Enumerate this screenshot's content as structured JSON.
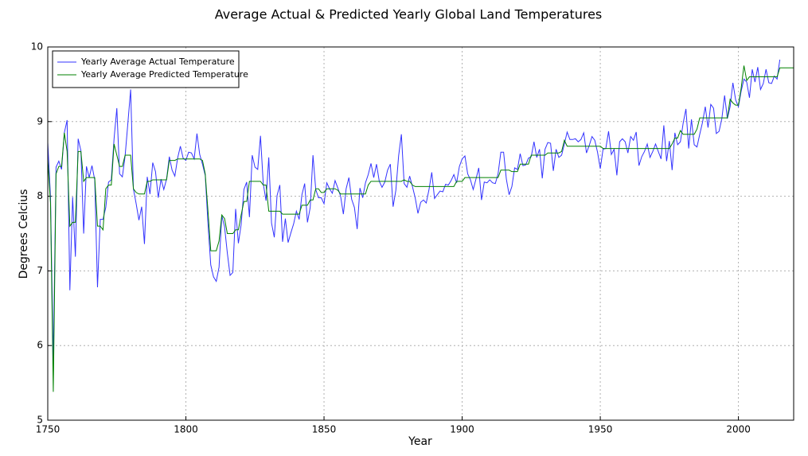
{
  "chart_data": {
    "type": "line",
    "title": "Average Actual & Predicted Yearly Global Land Temperatures",
    "x_label": "Year",
    "y_label": "Degrees Celcius",
    "xlim": [
      1750,
      2020
    ],
    "ylim": [
      5,
      10
    ],
    "xticks": [
      1750,
      1800,
      1850,
      1900,
      1950,
      2000
    ],
    "yticks": [
      5,
      6,
      7,
      8,
      9,
      10
    ],
    "grid": true,
    "legend": "upper left",
    "x": [
      1750,
      1751,
      1752,
      1753,
      1754,
      1755,
      1756,
      1757,
      1758,
      1759,
      1760,
      1761,
      1762,
      1763,
      1764,
      1765,
      1766,
      1767,
      1768,
      1769,
      1770,
      1771,
      1772,
      1773,
      1774,
      1775,
      1776,
      1777,
      1778,
      1779,
      1780,
      1781,
      1782,
      1783,
      1784,
      1785,
      1786,
      1787,
      1788,
      1789,
      1790,
      1791,
      1792,
      1793,
      1794,
      1795,
      1796,
      1797,
      1798,
      1799,
      1800,
      1801,
      1802,
      1803,
      1804,
      1805,
      1806,
      1807,
      1808,
      1809,
      1810,
      1811,
      1812,
      1813,
      1814,
      1815,
      1816,
      1817,
      1818,
      1819,
      1820,
      1821,
      1822,
      1823,
      1824,
      1825,
      1826,
      1827,
      1828,
      1829,
      1830,
      1831,
      1832,
      1833,
      1834,
      1835,
      1836,
      1837,
      1838,
      1839,
      1840,
      1841,
      1842,
      1843,
      1844,
      1845,
      1846,
      1847,
      1848,
      1849,
      1850,
      1851,
      1852,
      1853,
      1854,
      1855,
      1856,
      1857,
      1858,
      1859,
      1860,
      1861,
      1862,
      1863,
      1864,
      1865,
      1866,
      1867,
      1868,
      1869,
      1870,
      1871,
      1872,
      1873,
      1874,
      1875,
      1876,
      1877,
      1878,
      1879,
      1880,
      1881,
      1882,
      1883,
      1884,
      1885,
      1886,
      1887,
      1888,
      1889,
      1890,
      1891,
      1892,
      1893,
      1894,
      1895,
      1896,
      1897,
      1898,
      1899,
      1900,
      1901,
      1902,
      1903,
      1904,
      1905,
      1906,
      1907,
      1908,
      1909,
      1910,
      1911,
      1912,
      1913,
      1914,
      1915,
      1916,
      1917,
      1918,
      1919,
      1920,
      1921,
      1922,
      1923,
      1924,
      1925,
      1926,
      1927,
      1928,
      1929,
      1930,
      1931,
      1932,
      1933,
      1934,
      1935,
      1936,
      1937,
      1938,
      1939,
      1940,
      1941,
      1942,
      1943,
      1944,
      1945,
      1946,
      1947,
      1948,
      1949,
      1950,
      1951,
      1952,
      1953,
      1954,
      1955,
      1956,
      1957,
      1958,
      1959,
      1960,
      1961,
      1962,
      1963,
      1964,
      1965,
      1966,
      1967,
      1968,
      1969,
      1970,
      1971,
      1972,
      1973,
      1974,
      1975,
      1976,
      1977,
      1978,
      1979,
      1980,
      1981,
      1982,
      1983,
      1984,
      1985,
      1986,
      1987,
      1988,
      1989,
      1990,
      1991,
      1992,
      1993,
      1994,
      1995,
      1996,
      1997,
      1998,
      1999,
      2000,
      2001,
      2002,
      2003,
      2004,
      2005,
      2006,
      2007,
      2008,
      2009,
      2010,
      2011,
      2012,
      2013,
      2014,
      2015,
      2016,
      2017,
      2018,
      2019,
      2020
    ],
    "series": [
      {
        "name": "Yearly Average Actual Temperature",
        "color": "#3333ff",
        "values": [
          8.72,
          7.98,
          5.78,
          8.39,
          8.47,
          8.36,
          8.85,
          9.02,
          6.74,
          7.99,
          7.19,
          8.77,
          8.61,
          7.5,
          8.4,
          8.25,
          8.41,
          8.22,
          6.78,
          7.69,
          7.69,
          7.85,
          8.19,
          8.22,
          8.77,
          9.18,
          8.3,
          8.26,
          8.54,
          8.98,
          9.43,
          8.1,
          7.9,
          7.68,
          7.86,
          7.36,
          8.26,
          8.03,
          8.45,
          8.33,
          7.98,
          8.23,
          8.09,
          8.23,
          8.53,
          8.35,
          8.27,
          8.51,
          8.67,
          8.51,
          8.48,
          8.59,
          8.58,
          8.5,
          8.84,
          8.56,
          8.43,
          8.28,
          7.63,
          7.08,
          6.92,
          6.86,
          7.05,
          7.74,
          7.59,
          7.24,
          6.94,
          6.98,
          7.83,
          7.37,
          7.62,
          8.09,
          8.19,
          7.72,
          8.55,
          8.39,
          8.36,
          8.81,
          8.17,
          7.94,
          8.52,
          7.64,
          7.45,
          8.01,
          8.15,
          7.39,
          7.7,
          7.38,
          7.51,
          7.63,
          7.8,
          7.69,
          8.02,
          8.17,
          7.65,
          7.85,
          8.55,
          8.09,
          7.98,
          7.98,
          7.9,
          8.18,
          8.1,
          8.04,
          8.21,
          8.11,
          8.0,
          7.76,
          8.1,
          8.25,
          7.96,
          7.85,
          7.56,
          8.11,
          7.98,
          8.18,
          8.29,
          8.44,
          8.25,
          8.43,
          8.2,
          8.12,
          8.19,
          8.35,
          8.43,
          7.86,
          8.08,
          8.54,
          8.83,
          8.17,
          8.12,
          8.27,
          8.13,
          7.98,
          7.77,
          7.92,
          7.95,
          7.91,
          8.09,
          8.32,
          7.97,
          8.02,
          8.07,
          8.06,
          8.16,
          8.15,
          8.21,
          8.29,
          8.18,
          8.4,
          8.5,
          8.54,
          8.3,
          8.22,
          8.09,
          8.23,
          8.38,
          7.95,
          8.19,
          8.18,
          8.22,
          8.18,
          8.17,
          8.3,
          8.59,
          8.59,
          8.23,
          8.02,
          8.13,
          8.38,
          8.36,
          8.57,
          8.41,
          8.42,
          8.51,
          8.53,
          8.73,
          8.52,
          8.63,
          8.24,
          8.63,
          8.72,
          8.71,
          8.34,
          8.63,
          8.52,
          8.55,
          8.7,
          8.86,
          8.76,
          8.76,
          8.77,
          8.73,
          8.76,
          8.85,
          8.58,
          8.68,
          8.8,
          8.75,
          8.59,
          8.37,
          8.63,
          8.64,
          8.87,
          8.56,
          8.63,
          8.28,
          8.73,
          8.77,
          8.73,
          8.58,
          8.8,
          8.75,
          8.86,
          8.41,
          8.53,
          8.6,
          8.7,
          8.52,
          8.6,
          8.7,
          8.6,
          8.5,
          8.95,
          8.47,
          8.74,
          8.35,
          8.85,
          8.69,
          8.73,
          8.98,
          9.17,
          8.64,
          9.03,
          8.69,
          8.66,
          8.83,
          8.99,
          9.2,
          8.92,
          9.23,
          9.18,
          8.84,
          8.87,
          9.04,
          9.35,
          9.04,
          9.2,
          9.52,
          9.29,
          9.2,
          9.41,
          9.57,
          9.53,
          9.32,
          9.7,
          9.53,
          9.73,
          9.43,
          9.51,
          9.7,
          9.52,
          9.51,
          9.61,
          9.57,
          9.83,
          null,
          null,
          null,
          null,
          null
        ]
      },
      {
        "name": "Yearly Average Predicted Temperature",
        "color": "#008000",
        "values": [
          8.5,
          7.9,
          5.38,
          8.3,
          8.4,
          8.4,
          8.85,
          8.6,
          7.6,
          7.65,
          7.65,
          8.6,
          8.6,
          8.2,
          8.25,
          8.25,
          8.25,
          8.25,
          7.6,
          7.6,
          7.55,
          8.1,
          8.15,
          8.15,
          8.7,
          8.55,
          8.4,
          8.4,
          8.55,
          8.55,
          8.55,
          8.1,
          8.05,
          8.03,
          8.03,
          8.03,
          8.2,
          8.2,
          8.22,
          8.22,
          8.22,
          8.22,
          8.22,
          8.22,
          8.48,
          8.48,
          8.48,
          8.5,
          8.5,
          8.5,
          8.5,
          8.5,
          8.5,
          8.5,
          8.5,
          8.5,
          8.48,
          8.3,
          7.8,
          7.27,
          7.27,
          7.27,
          7.4,
          7.75,
          7.7,
          7.5,
          7.5,
          7.5,
          7.55,
          7.55,
          7.75,
          7.93,
          7.93,
          8.2,
          8.2,
          8.2,
          8.2,
          8.2,
          8.15,
          8.15,
          7.8,
          7.8,
          7.8,
          7.8,
          7.8,
          7.76,
          7.76,
          7.76,
          7.76,
          7.76,
          7.76,
          7.76,
          7.88,
          7.88,
          7.88,
          7.95,
          7.95,
          8.1,
          8.1,
          8.05,
          8.05,
          8.1,
          8.1,
          8.1,
          8.1,
          8.08,
          8.03,
          8.03,
          8.03,
          8.03,
          8.03,
          8.03,
          8.03,
          8.03,
          8.03,
          8.03,
          8.15,
          8.2,
          8.2,
          8.2,
          8.2,
          8.2,
          8.2,
          8.2,
          8.2,
          8.2,
          8.2,
          8.2,
          8.2,
          8.22,
          8.2,
          8.2,
          8.15,
          8.13,
          8.13,
          8.13,
          8.13,
          8.13,
          8.13,
          8.13,
          8.13,
          8.13,
          8.13,
          8.13,
          8.13,
          8.13,
          8.13,
          8.13,
          8.2,
          8.2,
          8.2,
          8.25,
          8.25,
          8.25,
          8.25,
          8.25,
          8.25,
          8.25,
          8.25,
          8.25,
          8.25,
          8.25,
          8.25,
          8.25,
          8.35,
          8.35,
          8.35,
          8.35,
          8.33,
          8.33,
          8.33,
          8.43,
          8.43,
          8.43,
          8.43,
          8.55,
          8.55,
          8.55,
          8.55,
          8.55,
          8.55,
          8.58,
          8.58,
          8.58,
          8.58,
          8.58,
          8.6,
          8.75,
          8.67,
          8.67,
          8.67,
          8.67,
          8.67,
          8.67,
          8.67,
          8.67,
          8.67,
          8.67,
          8.67,
          8.67,
          8.67,
          8.64,
          8.64,
          8.64,
          8.64,
          8.64,
          8.64,
          8.64,
          8.64,
          8.64,
          8.64,
          8.64,
          8.64,
          8.64,
          8.64,
          8.64,
          8.64,
          8.64,
          8.64,
          8.64,
          8.64,
          8.64,
          8.64,
          8.64,
          8.64,
          8.64,
          8.7,
          8.78,
          8.78,
          8.88,
          8.83,
          8.83,
          8.83,
          8.83,
          8.83,
          8.9,
          9.05,
          9.05,
          9.05,
          9.05,
          9.05,
          9.05,
          9.05,
          9.05,
          9.05,
          9.05,
          9.05,
          9.3,
          9.25,
          9.22,
          9.22,
          9.45,
          9.75,
          9.55,
          9.6,
          9.6,
          9.6,
          9.6,
          9.6,
          9.6,
          9.6,
          9.6,
          9.6,
          9.6,
          9.6,
          9.72,
          9.72,
          9.72,
          9.72,
          9.72,
          9.72
        ]
      }
    ]
  }
}
